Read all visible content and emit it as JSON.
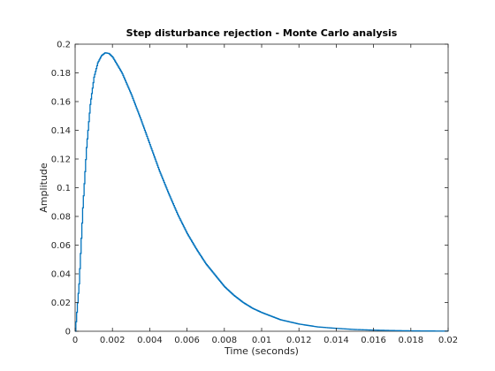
{
  "chart_data": {
    "type": "line",
    "title": "Step disturbance rejection - Monte Carlo analysis",
    "xlabel": "Time (seconds)",
    "ylabel": "Amplitude",
    "xlim": [
      0,
      0.02
    ],
    "ylim": [
      0,
      0.2
    ],
    "xticks": [
      0,
      0.002,
      0.004,
      0.006,
      0.008,
      0.01,
      0.012,
      0.014,
      0.016,
      0.018,
      0.02
    ],
    "xtick_labels": [
      "0",
      "0.002",
      "0.004",
      "0.006",
      "0.008",
      "0.01",
      "0.012",
      "0.014",
      "0.016",
      "0.018",
      "0.02"
    ],
    "yticks": [
      0,
      0.02,
      0.04,
      0.06,
      0.08,
      0.1,
      0.12,
      0.14,
      0.16,
      0.18,
      0.2
    ],
    "ytick_labels": [
      "0",
      "0.02",
      "0.04",
      "0.06",
      "0.08",
      "0.1",
      "0.12",
      "0.14",
      "0.16",
      "0.18",
      "0.2"
    ],
    "grid": false,
    "line_style": "stairs",
    "series": [
      {
        "color": "#0072bd",
        "x": [
          0,
          0.0002,
          0.0004,
          0.0006,
          0.0008,
          0.001,
          0.0012,
          0.0014,
          0.0016,
          0.0018,
          0.002,
          0.0025,
          0.003,
          0.0035,
          0.004,
          0.0045,
          0.005,
          0.0055,
          0.006,
          0.0065,
          0.007,
          0.0075,
          0.008,
          0.0085,
          0.009,
          0.0095,
          0.01,
          0.011,
          0.012,
          0.013,
          0.014,
          0.015,
          0.016,
          0.017,
          0.018,
          0.019,
          0.02
        ],
        "y": [
          0,
          0.033,
          0.086,
          0.128,
          0.158,
          0.177,
          0.187,
          0.192,
          0.194,
          0.1935,
          0.191,
          0.18,
          0.165,
          0.148,
          0.13,
          0.112,
          0.096,
          0.081,
          0.068,
          0.057,
          0.047,
          0.039,
          0.031,
          0.025,
          0.02,
          0.016,
          0.013,
          0.008,
          0.005,
          0.003,
          0.002,
          0.0012,
          0.0008,
          0.0005,
          0.0003,
          0.0002,
          0.0001
        ]
      }
    ]
  }
}
